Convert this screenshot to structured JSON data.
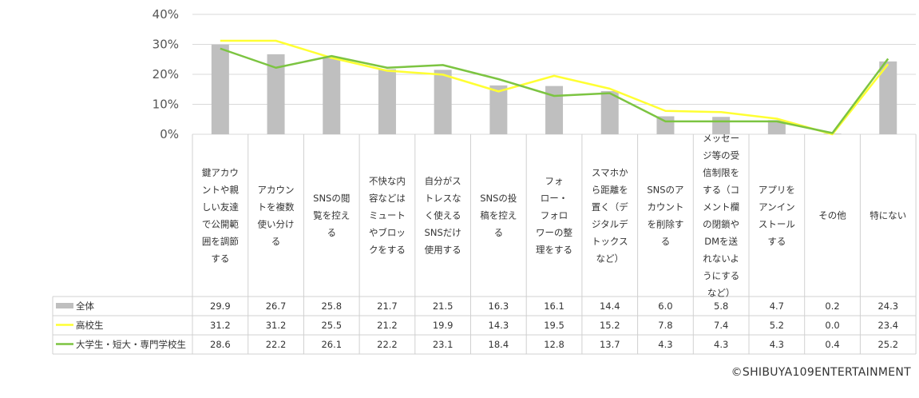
{
  "chart_data": {
    "type": "bar+line",
    "categories": [
      [
        "鍵アカウ",
        "ントや親",
        "しい友達",
        "で公開範",
        "囲を調節",
        "する"
      ],
      [
        "アカウン",
        "トを複数",
        "使い分け",
        "る"
      ],
      [
        "SNSの閲",
        "覧を控え",
        "る"
      ],
      [
        "不快な内",
        "容などは",
        "ミュート",
        "やブロッ",
        "クをする"
      ],
      [
        "自分がス",
        "トレスな",
        "く使える",
        "SNSだけ",
        "使用する"
      ],
      [
        "SNSの投",
        "稿を控え",
        "る"
      ],
      [
        "フォ",
        "ロー・",
        "フォロ",
        "ワーの整",
        "理をする"
      ],
      [
        "スマホか",
        "ら距離を",
        "置く（デ",
        "ジタルデ",
        "トックス",
        "など）"
      ],
      [
        "SNSのア",
        "カウント",
        "を削除す",
        "る"
      ],
      [
        "メッセー",
        "ジ等の受",
        "信制限を",
        "する（コ",
        "メント欄",
        "の閉鎖や",
        "DMを送",
        "れないよ",
        "うにする",
        "など）"
      ],
      [
        "アプリを",
        "アンイン",
        "ストール",
        "する"
      ],
      [
        "その他"
      ],
      [
        "特にない"
      ]
    ],
    "yticks": [
      "0%",
      "10%",
      "20%",
      "30%",
      "40%"
    ],
    "ylim": [
      0,
      40
    ],
    "series": [
      {
        "name": "全体",
        "kind": "bar",
        "color": "#bfbfbf",
        "values": [
          29.9,
          26.7,
          25.8,
          21.7,
          21.5,
          16.3,
          16.1,
          14.4,
          6.0,
          5.8,
          4.7,
          0.2,
          24.3
        ],
        "labels": [
          "29.9",
          "26.7",
          "25.8",
          "21.7",
          "21.5",
          "16.3",
          "16.1",
          "14.4",
          "6.0",
          "5.8",
          "4.7",
          "0.2",
          "24.3"
        ]
      },
      {
        "name": "高校生",
        "kind": "line",
        "color": "#ffff33",
        "values": [
          31.2,
          31.2,
          25.5,
          21.2,
          19.9,
          14.3,
          19.5,
          15.2,
          7.8,
          7.4,
          5.2,
          0.0,
          23.4
        ],
        "labels": [
          "31.2",
          "31.2",
          "25.5",
          "21.2",
          "19.9",
          "14.3",
          "19.5",
          "15.2",
          "7.8",
          "7.4",
          "5.2",
          "0.0",
          "23.4"
        ]
      },
      {
        "name": "大学生・短大・専門学校生",
        "kind": "line",
        "color": "#7cc441",
        "values": [
          28.6,
          22.2,
          26.1,
          22.2,
          23.1,
          18.4,
          12.8,
          13.7,
          4.3,
          4.3,
          4.3,
          0.4,
          25.2
        ],
        "labels": [
          "28.6",
          "22.2",
          "26.1",
          "22.2",
          "23.1",
          "18.4",
          "12.8",
          "13.7",
          "4.3",
          "4.3",
          "4.3",
          "0.4",
          "25.2"
        ]
      }
    ],
    "grid": true,
    "legend": "data-table"
  },
  "copyright": "©SHIBUYA109ENTERTAINMENT"
}
